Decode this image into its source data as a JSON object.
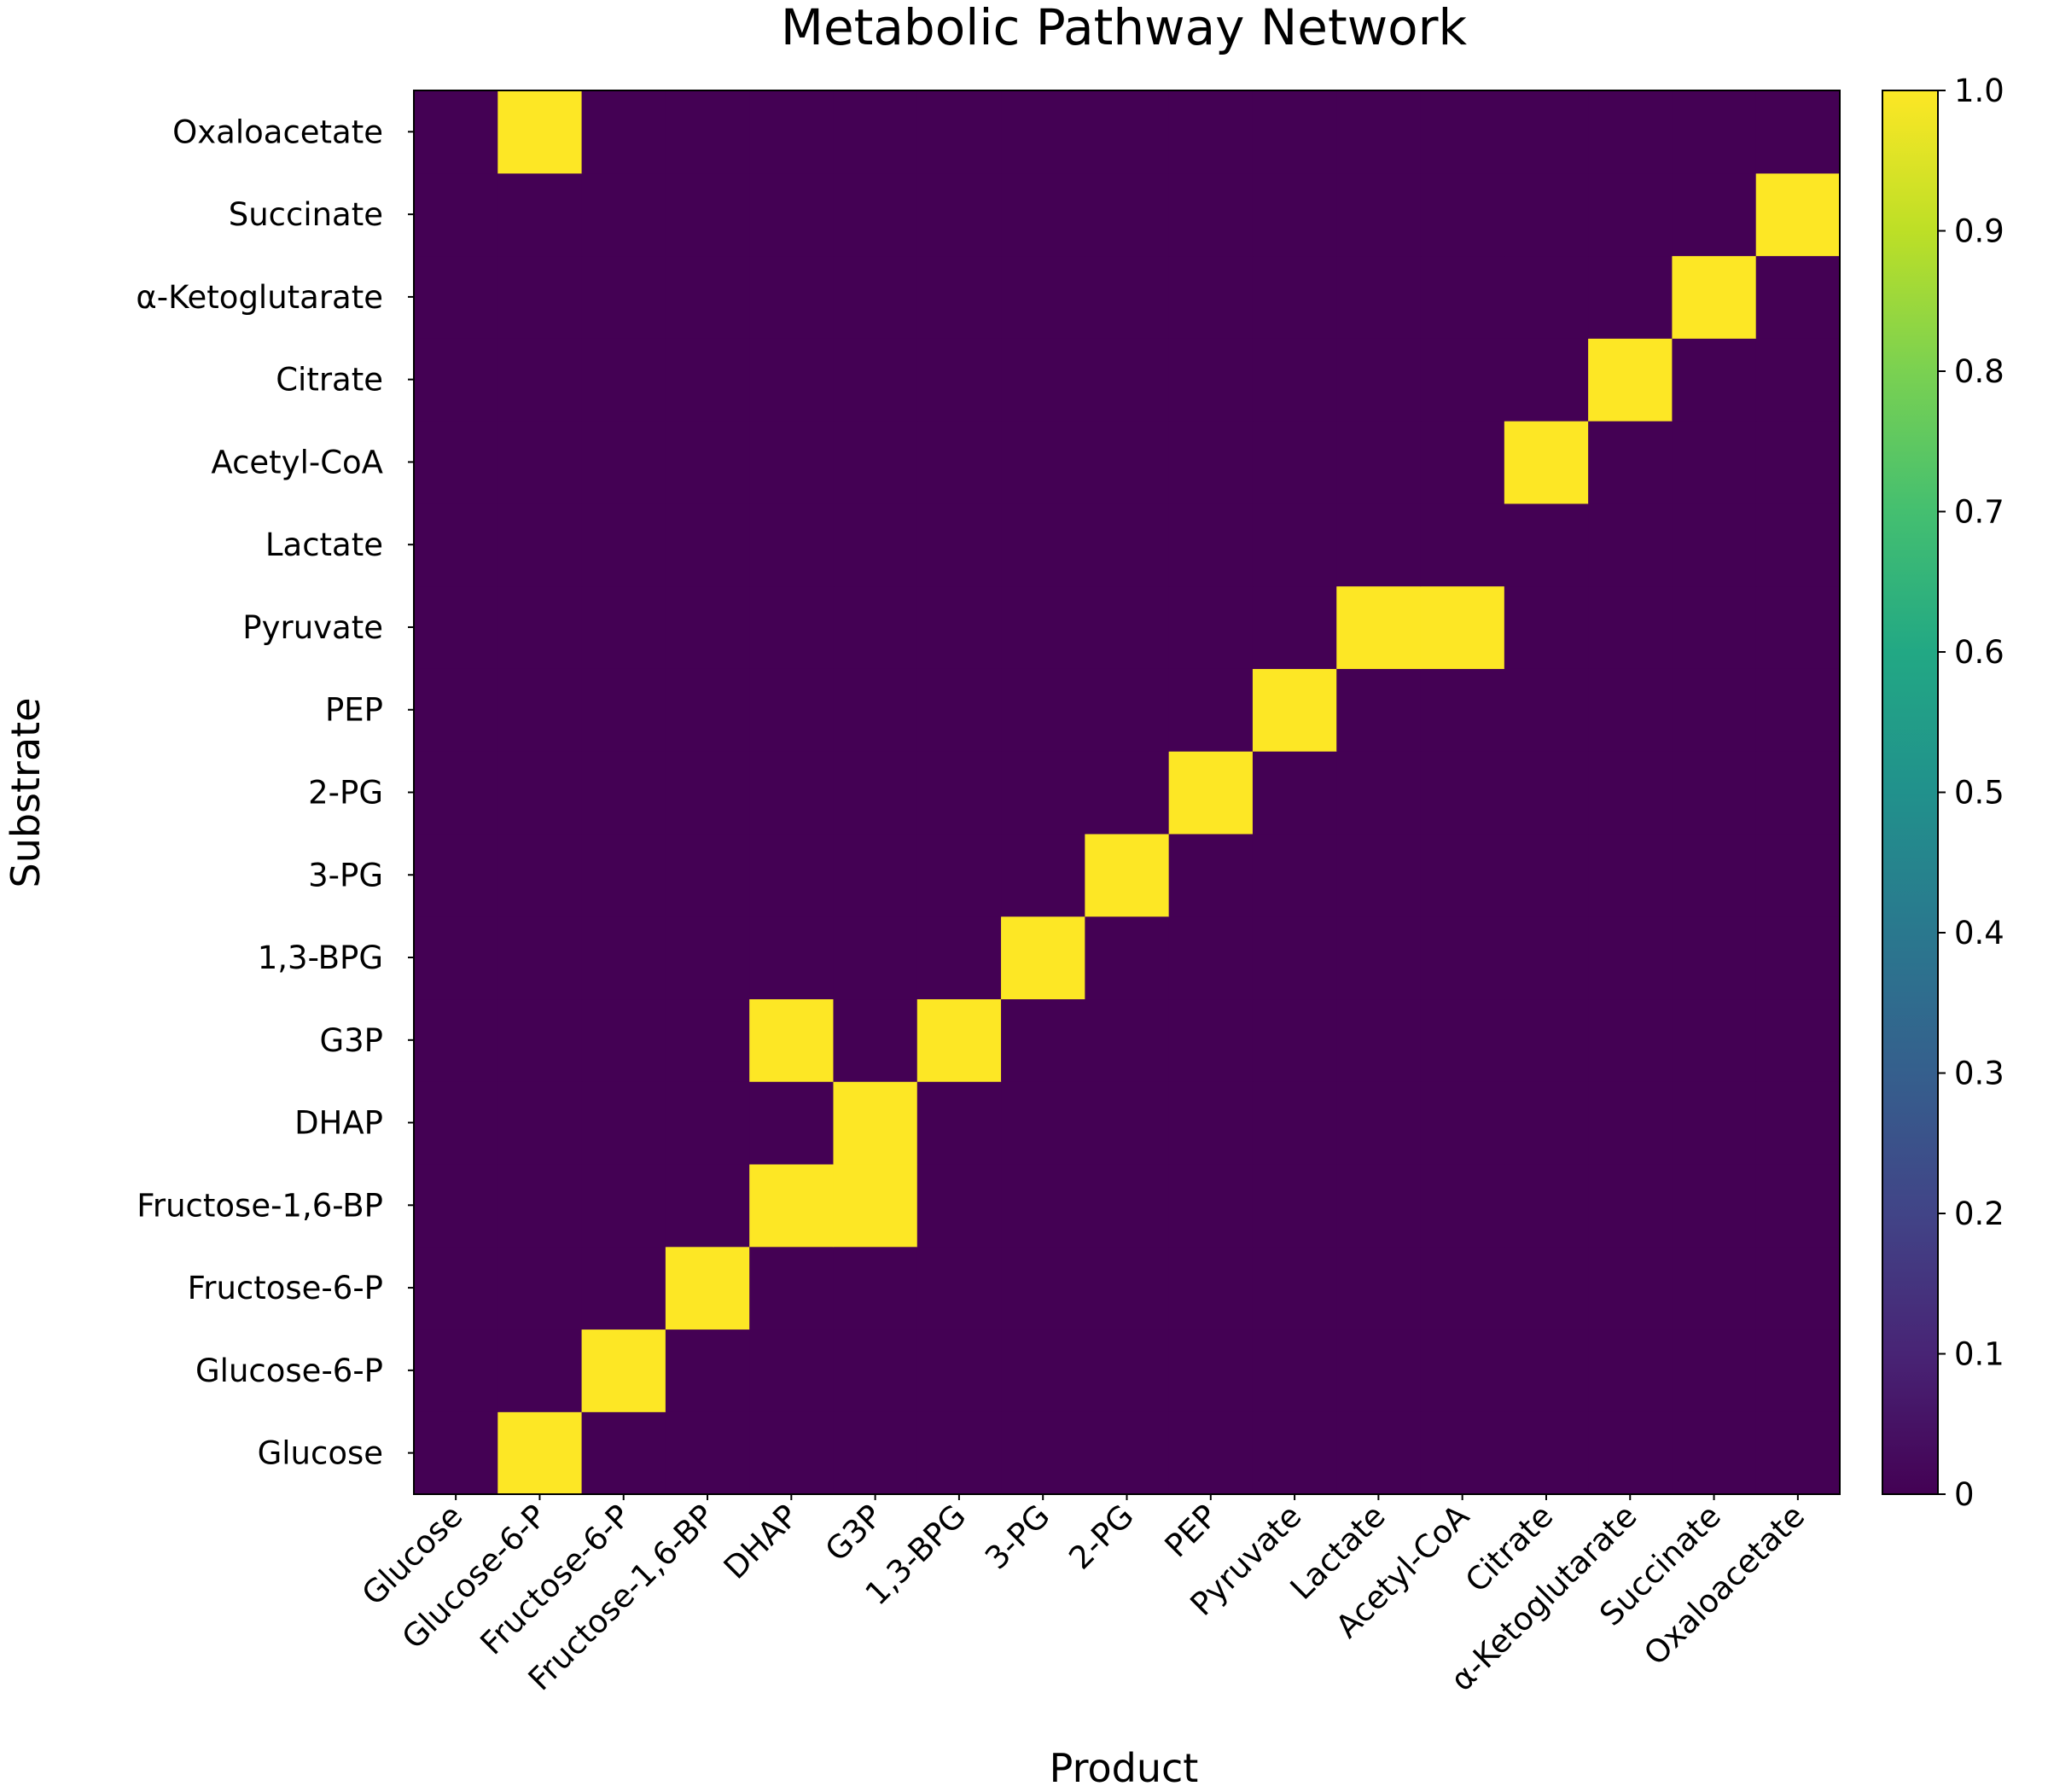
{
  "chart_data": {
    "type": "heatmap",
    "title": "Metabolic Pathway Network",
    "xlabel": "Product",
    "ylabel": "Substrate",
    "x_labels": [
      "Glucose",
      "Glucose-6-P",
      "Fructose-6-P",
      "Fructose-1,6-BP",
      "DHAP",
      "G3P",
      "1,3-BPG",
      "3-PG",
      "2-PG",
      "PEP",
      "Pyruvate",
      "Lactate",
      "Acetyl-CoA",
      "Citrate",
      "α-Ketoglutarate",
      "Succinate",
      "Oxaloacetate"
    ],
    "y_labels": [
      "Glucose",
      "Glucose-6-P",
      "Fructose-6-P",
      "Fructose-1,6-BP",
      "DHAP",
      "G3P",
      "1,3-BPG",
      "3-PG",
      "2-PG",
      "PEP",
      "Pyruvate",
      "Lactate",
      "Acetyl-CoA",
      "Citrate",
      "α-Ketoglutarate",
      "Succinate",
      "Oxaloacetate"
    ],
    "y_order": "bottom-to-top",
    "values": [
      [
        0,
        1,
        0,
        0,
        0,
        0,
        0,
        0,
        0,
        0,
        0,
        0,
        0,
        0,
        0,
        0,
        0
      ],
      [
        0,
        0,
        1,
        0,
        0,
        0,
        0,
        0,
        0,
        0,
        0,
        0,
        0,
        0,
        0,
        0,
        0
      ],
      [
        0,
        0,
        0,
        1,
        0,
        0,
        0,
        0,
        0,
        0,
        0,
        0,
        0,
        0,
        0,
        0,
        0
      ],
      [
        0,
        0,
        0,
        0,
        1,
        1,
        0,
        0,
        0,
        0,
        0,
        0,
        0,
        0,
        0,
        0,
        0
      ],
      [
        0,
        0,
        0,
        0,
        0,
        1,
        0,
        0,
        0,
        0,
        0,
        0,
        0,
        0,
        0,
        0,
        0
      ],
      [
        0,
        0,
        0,
        0,
        1,
        0,
        1,
        0,
        0,
        0,
        0,
        0,
        0,
        0,
        0,
        0,
        0
      ],
      [
        0,
        0,
        0,
        0,
        0,
        0,
        0,
        1,
        0,
        0,
        0,
        0,
        0,
        0,
        0,
        0,
        0
      ],
      [
        0,
        0,
        0,
        0,
        0,
        0,
        0,
        0,
        1,
        0,
        0,
        0,
        0,
        0,
        0,
        0,
        0
      ],
      [
        0,
        0,
        0,
        0,
        0,
        0,
        0,
        0,
        0,
        1,
        0,
        0,
        0,
        0,
        0,
        0,
        0
      ],
      [
        0,
        0,
        0,
        0,
        0,
        0,
        0,
        0,
        0,
        0,
        1,
        0,
        0,
        0,
        0,
        0,
        0
      ],
      [
        0,
        0,
        0,
        0,
        0,
        0,
        0,
        0,
        0,
        0,
        0,
        1,
        1,
        0,
        0,
        0,
        0
      ],
      [
        0,
        0,
        0,
        0,
        0,
        0,
        0,
        0,
        0,
        0,
        0,
        0,
        0,
        0,
        0,
        0,
        0
      ],
      [
        0,
        0,
        0,
        0,
        0,
        0,
        0,
        0,
        0,
        0,
        0,
        0,
        0,
        1,
        0,
        0,
        0
      ],
      [
        0,
        0,
        0,
        0,
        0,
        0,
        0,
        0,
        0,
        0,
        0,
        0,
        0,
        0,
        1,
        0,
        0
      ],
      [
        0,
        0,
        0,
        0,
        0,
        0,
        0,
        0,
        0,
        0,
        0,
        0,
        0,
        0,
        0,
        1,
        0
      ],
      [
        0,
        0,
        0,
        0,
        0,
        0,
        0,
        0,
        0,
        0,
        0,
        0,
        0,
        0,
        0,
        0,
        1
      ],
      [
        0,
        1,
        0,
        0,
        0,
        0,
        0,
        0,
        0,
        0,
        0,
        0,
        0,
        0,
        0,
        0,
        0
      ]
    ],
    "colormap": "viridis",
    "colors": {
      "low": "#440154",
      "high": "#fde725"
    },
    "colorbar": {
      "range": [
        0,
        1
      ],
      "ticks": [
        0,
        0.1,
        0.2,
        0.3,
        0.4,
        0.5,
        0.6,
        0.7,
        0.8,
        0.9,
        1.0
      ],
      "tick_labels": [
        "0",
        "0.1",
        "0.2",
        "0.3",
        "0.4",
        "0.5",
        "0.6",
        "0.7",
        "0.8",
        "0.9",
        "1.0"
      ]
    },
    "grid": false
  }
}
